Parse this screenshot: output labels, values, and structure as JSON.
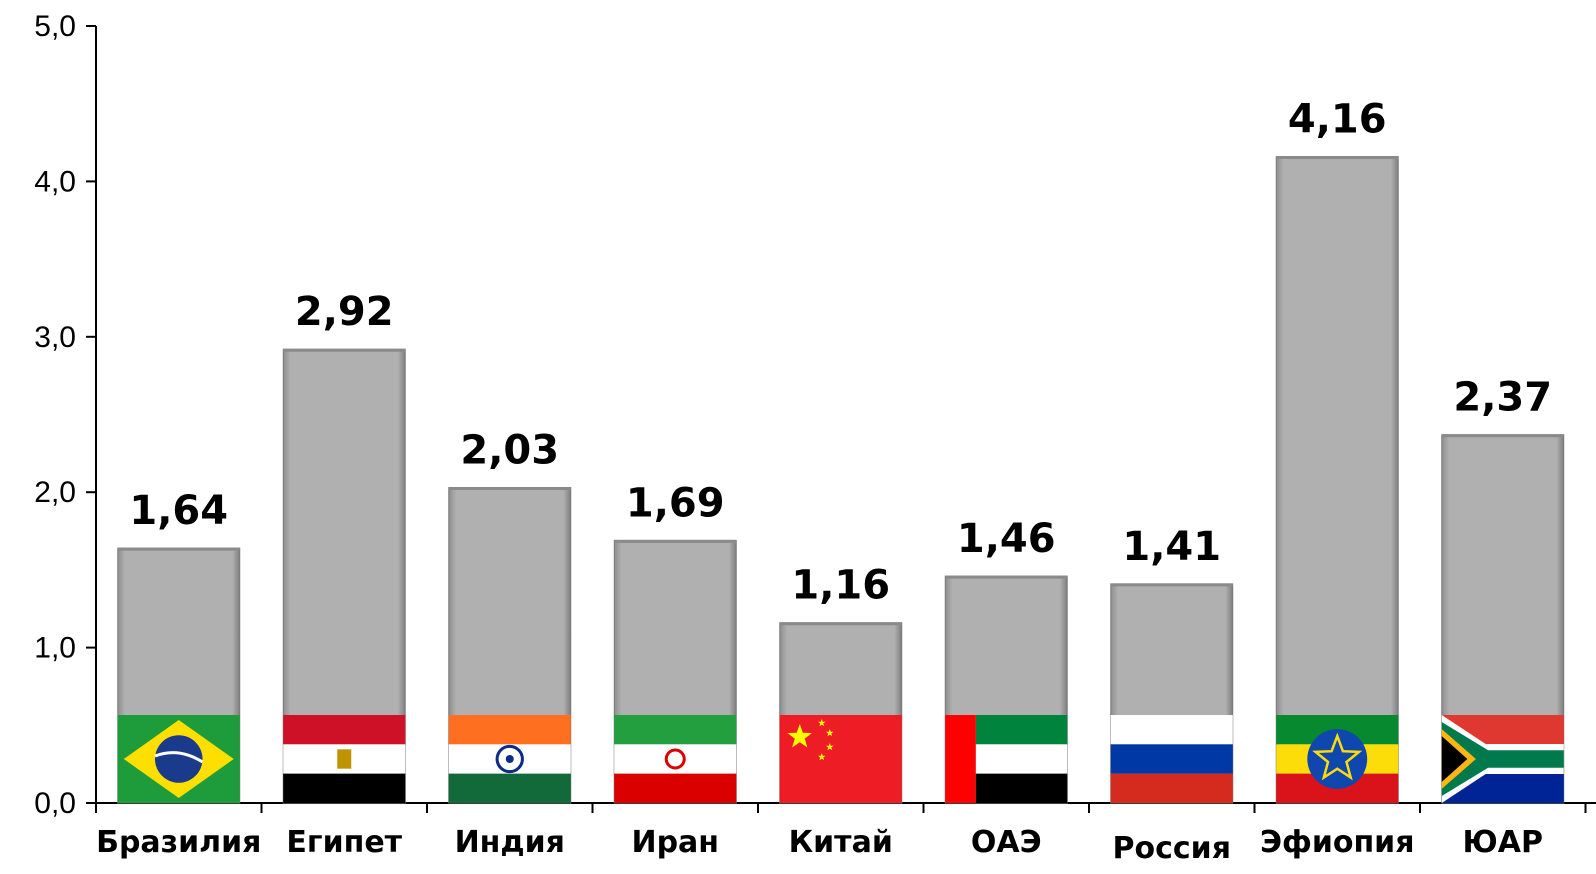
{
  "chart_data": {
    "type": "bar",
    "categories": [
      "Бразилия",
      "Египет",
      "Индия",
      "Иран",
      "Китай",
      "ОАЭ",
      "Россия",
      "Эфиопия",
      "ЮАР"
    ],
    "values": [
      1.64,
      2.92,
      2.03,
      1.69,
      1.16,
      1.46,
      1.41,
      4.16,
      2.37
    ],
    "value_labels": [
      "1,64",
      "2,92",
      "2,03",
      "1,69",
      "1,16",
      "1,46",
      "1,41",
      "4,16",
      "2,37"
    ],
    "flag_icons": [
      "brazil-flag-icon",
      "egypt-flag-icon",
      "india-flag-icon",
      "iran-flag-icon",
      "china-flag-icon",
      "uae-flag-icon",
      "russia-flag-icon",
      "ethiopia-flag-icon",
      "south-africa-flag-icon"
    ],
    "highlight_category": "Россия",
    "highlight_color": "#ff0000",
    "bar_color": "#b0b0b0",
    "title": "",
    "xlabel": "",
    "ylabel": "",
    "ylim": [
      0,
      5
    ],
    "yticks": [
      "0,0",
      "1,0",
      "2,0",
      "3,0",
      "4,0",
      "5,0"
    ],
    "grid": false,
    "legend": "none"
  }
}
